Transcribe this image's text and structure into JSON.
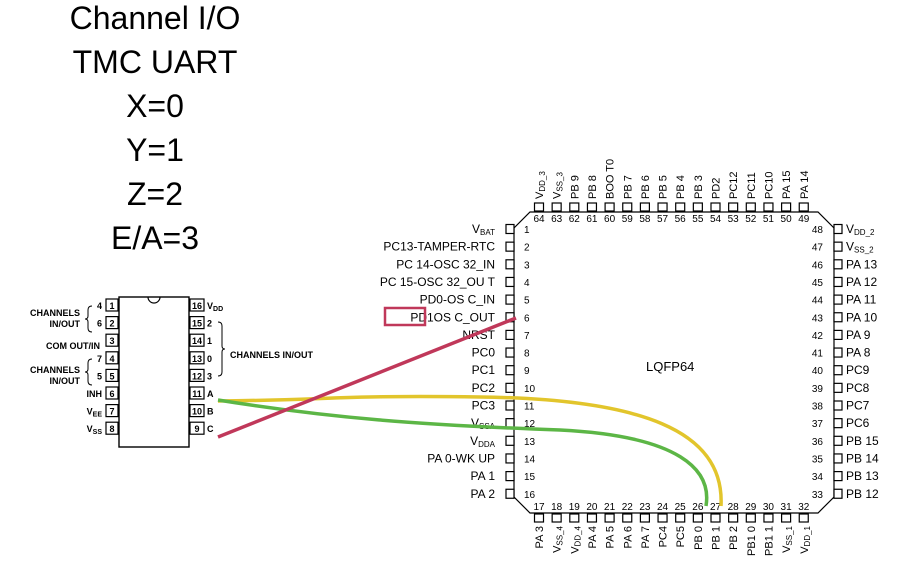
{
  "title_lines": [
    "Channel I/O",
    "TMC UART",
    "X=0",
    "Y=1",
    "Z=2",
    "E/A=3"
  ],
  "mux": {
    "left_pins": [
      {
        "num": "1",
        "name": "4"
      },
      {
        "num": "2",
        "name": "6"
      },
      {
        "num": "3",
        "name": ""
      },
      {
        "num": "4",
        "name": "7"
      },
      {
        "num": "5",
        "name": "5"
      },
      {
        "num": "6",
        "name": "INH"
      },
      {
        "num": "7",
        "name": "VEE"
      },
      {
        "num": "8",
        "name": "VSS"
      }
    ],
    "right_pins": [
      {
        "num": "16",
        "name": "VDD"
      },
      {
        "num": "15",
        "name": "2"
      },
      {
        "num": "14",
        "name": "1"
      },
      {
        "num": "13",
        "name": "0"
      },
      {
        "num": "12",
        "name": "3"
      },
      {
        "num": "11",
        "name": "A"
      },
      {
        "num": "10",
        "name": "B"
      },
      {
        "num": "9",
        "name": "C"
      }
    ],
    "labels": {
      "channels_top": "CHANNELS\nIN/OUT",
      "com": "COM OUT/IN",
      "channels_bottom": "CHANNELS\nIN/OUT",
      "channels_right": "CHANNELS IN/OUT"
    }
  },
  "mcu": {
    "package": "LQFP64",
    "left_pins": [
      "VBAT",
      "PC13-TAMPER-RTC",
      "PC 14-OSC 32_IN",
      "PC 15-OSC 32_OU T",
      "PD0-OS C_IN",
      "PD1 OS C_OUT",
      "NRST",
      "PC0",
      "PC1",
      "PC2",
      "PC3",
      "VSSA",
      "VDDA",
      "PA 0-WK UP",
      "PA 1",
      "PA 2"
    ],
    "left_nums": [
      "1",
      "2",
      "3",
      "4",
      "5",
      "6",
      "7",
      "8",
      "9",
      "10",
      "11",
      "12",
      "13",
      "14",
      "15",
      "16"
    ],
    "right_pins": [
      "VDD_2",
      "VSS_2",
      "PA 13",
      "PA 12",
      "PA 11",
      "PA 10",
      "PA 9",
      "PA 8",
      "PC9",
      "PC8",
      "PC7",
      "PC6",
      "PB 15",
      "PB 14",
      "PB 13",
      "PB 12"
    ],
    "right_nums": [
      "48",
      "47",
      "46",
      "45",
      "44",
      "43",
      "42",
      "41",
      "40",
      "39",
      "38",
      "37",
      "36",
      "35",
      "34",
      "33"
    ],
    "top_pins": [
      "VDD_3",
      "VSS_3",
      "PB 9",
      "PB 8",
      "BOO T0",
      "PB 7",
      "PB 6",
      "PB 5",
      "PB 4",
      "PB 3",
      "PD2",
      "PC12",
      "PC11",
      "PC10",
      "PA 15",
      "PA 14"
    ],
    "top_nums": [
      "64",
      "63",
      "62",
      "61",
      "60",
      "59",
      "58",
      "57",
      "56",
      "55",
      "54",
      "53",
      "52",
      "51",
      "50",
      "49"
    ],
    "bottom_pins": [
      "PA 3",
      "VSS_4",
      "VDD_4",
      "PA 4",
      "PA 5",
      "PA 6",
      "PA 7",
      "PC4",
      "PC5",
      "PB 0",
      "PB 1",
      "PB 2",
      "PB1 0",
      "PB1 1",
      "VSS_1",
      "VDD_1"
    ],
    "bottom_nums": [
      "17",
      "18",
      "19",
      "20",
      "21",
      "22",
      "23",
      "24",
      "25",
      "26",
      "27",
      "28",
      "29",
      "30",
      "31",
      "32"
    ],
    "highlight": "PD1"
  },
  "wires": [
    {
      "from": "mux A (pin 11)",
      "to": "PB 0 (pin 26)",
      "color": "#5cb646"
    },
    {
      "from": "mux B (pin 10)",
      "to": "PB 1 (pin 27)",
      "color": "#e2c52c"
    },
    {
      "from": "mux C (pin 9)",
      "to": "PD1 (pin 6)",
      "color": "#c0385a"
    }
  ],
  "colors": {
    "highlight_box": "#c0385a"
  }
}
